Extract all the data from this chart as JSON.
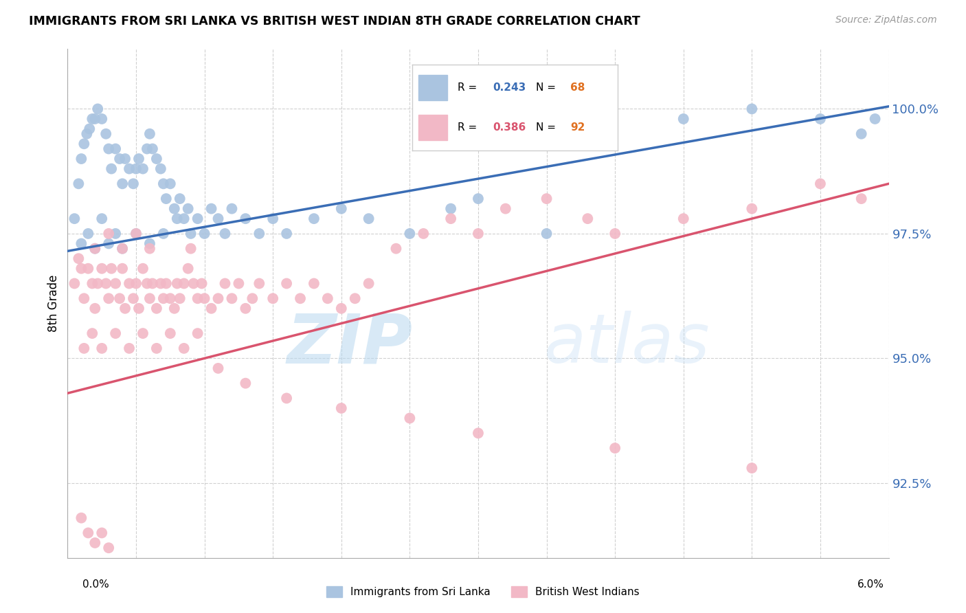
{
  "title": "IMMIGRANTS FROM SRI LANKA VS BRITISH WEST INDIAN 8TH GRADE CORRELATION CHART",
  "source": "Source: ZipAtlas.com",
  "ylabel": "8th Grade",
  "xmin": 0.0,
  "xmax": 6.0,
  "ymin": 91.0,
  "ymax": 101.2,
  "yticks": [
    92.5,
    95.0,
    97.5,
    100.0
  ],
  "ytick_labels": [
    "92.5%",
    "95.0%",
    "97.5%",
    "100.0%"
  ],
  "blue_R": 0.243,
  "blue_N": 68,
  "pink_R": 0.386,
  "pink_N": 92,
  "blue_color": "#aac4e0",
  "pink_color": "#f2b8c6",
  "blue_line_color": "#3a6db5",
  "pink_line_color": "#d9546e",
  "legend_label_blue": "Immigrants from Sri Lanka",
  "legend_label_pink": "British West Indians",
  "watermark": "ZIPAtlas",
  "blue_line_x0": 0.0,
  "blue_line_y0": 97.15,
  "blue_line_x1": 6.0,
  "blue_line_y1": 100.05,
  "pink_line_x0": 0.0,
  "pink_line_y0": 94.3,
  "pink_line_x1": 6.0,
  "pink_line_y1": 98.5,
  "blue_scatter_x": [
    0.05,
    0.08,
    0.1,
    0.12,
    0.14,
    0.16,
    0.18,
    0.2,
    0.22,
    0.25,
    0.28,
    0.3,
    0.32,
    0.35,
    0.38,
    0.4,
    0.42,
    0.45,
    0.48,
    0.5,
    0.52,
    0.55,
    0.58,
    0.6,
    0.62,
    0.65,
    0.68,
    0.7,
    0.72,
    0.75,
    0.78,
    0.8,
    0.82,
    0.85,
    0.88,
    0.9,
    0.95,
    1.0,
    1.05,
    1.1,
    1.15,
    1.2,
    1.3,
    1.4,
    1.5,
    1.6,
    1.8,
    2.0,
    2.2,
    2.5,
    2.8,
    3.0,
    3.5,
    4.5,
    5.0,
    5.5,
    5.8,
    5.9,
    0.1,
    0.15,
    0.2,
    0.25,
    0.3,
    0.35,
    0.4,
    0.5,
    0.6,
    0.7
  ],
  "blue_scatter_y": [
    97.8,
    98.5,
    99.0,
    99.3,
    99.5,
    99.6,
    99.8,
    99.8,
    100.0,
    99.8,
    99.5,
    99.2,
    98.8,
    99.2,
    99.0,
    98.5,
    99.0,
    98.8,
    98.5,
    98.8,
    99.0,
    98.8,
    99.2,
    99.5,
    99.2,
    99.0,
    98.8,
    98.5,
    98.2,
    98.5,
    98.0,
    97.8,
    98.2,
    97.8,
    98.0,
    97.5,
    97.8,
    97.5,
    98.0,
    97.8,
    97.5,
    98.0,
    97.8,
    97.5,
    97.8,
    97.5,
    97.8,
    98.0,
    97.8,
    97.5,
    98.0,
    98.2,
    97.5,
    99.8,
    100.0,
    99.8,
    99.5,
    99.8,
    97.3,
    97.5,
    97.2,
    97.8,
    97.3,
    97.5,
    97.2,
    97.5,
    97.3,
    97.5
  ],
  "pink_scatter_x": [
    0.05,
    0.08,
    0.1,
    0.12,
    0.15,
    0.18,
    0.2,
    0.22,
    0.25,
    0.28,
    0.3,
    0.32,
    0.35,
    0.38,
    0.4,
    0.42,
    0.45,
    0.48,
    0.5,
    0.52,
    0.55,
    0.58,
    0.6,
    0.62,
    0.65,
    0.68,
    0.7,
    0.72,
    0.75,
    0.78,
    0.8,
    0.82,
    0.85,
    0.88,
    0.9,
    0.92,
    0.95,
    0.98,
    1.0,
    1.05,
    1.1,
    1.15,
    1.2,
    1.25,
    1.3,
    1.35,
    1.4,
    1.5,
    1.6,
    1.7,
    1.8,
    1.9,
    2.0,
    2.1,
    2.2,
    2.4,
    2.6,
    2.8,
    3.0,
    3.2,
    3.5,
    3.8,
    4.0,
    4.5,
    5.0,
    5.5,
    5.8,
    0.12,
    0.18,
    0.25,
    0.35,
    0.45,
    0.55,
    0.65,
    0.75,
    0.85,
    0.95,
    1.1,
    1.3,
    1.6,
    2.0,
    2.5,
    3.0,
    4.0,
    5.0,
    0.2,
    0.3,
    0.4,
    0.5,
    0.6
  ],
  "pink_scatter_y": [
    96.5,
    97.0,
    96.8,
    96.2,
    96.8,
    96.5,
    96.0,
    96.5,
    96.8,
    96.5,
    96.2,
    96.8,
    96.5,
    96.2,
    96.8,
    96.0,
    96.5,
    96.2,
    96.5,
    96.0,
    96.8,
    96.5,
    96.2,
    96.5,
    96.0,
    96.5,
    96.2,
    96.5,
    96.2,
    96.0,
    96.5,
    96.2,
    96.5,
    96.8,
    97.2,
    96.5,
    96.2,
    96.5,
    96.2,
    96.0,
    96.2,
    96.5,
    96.2,
    96.5,
    96.0,
    96.2,
    96.5,
    96.2,
    96.5,
    96.2,
    96.5,
    96.2,
    96.0,
    96.2,
    96.5,
    97.2,
    97.5,
    97.8,
    97.5,
    98.0,
    98.2,
    97.8,
    97.5,
    97.8,
    98.0,
    98.5,
    98.2,
    95.2,
    95.5,
    95.2,
    95.5,
    95.2,
    95.5,
    95.2,
    95.5,
    95.2,
    95.5,
    94.8,
    94.5,
    94.2,
    94.0,
    93.8,
    93.5,
    93.2,
    92.8,
    97.2,
    97.5,
    97.2,
    97.5,
    97.2
  ],
  "pink_low_scatter_x": [
    0.1,
    0.15,
    0.2,
    0.25,
    0.3
  ],
  "pink_low_scatter_y": [
    91.8,
    91.5,
    91.3,
    91.5,
    91.2
  ]
}
